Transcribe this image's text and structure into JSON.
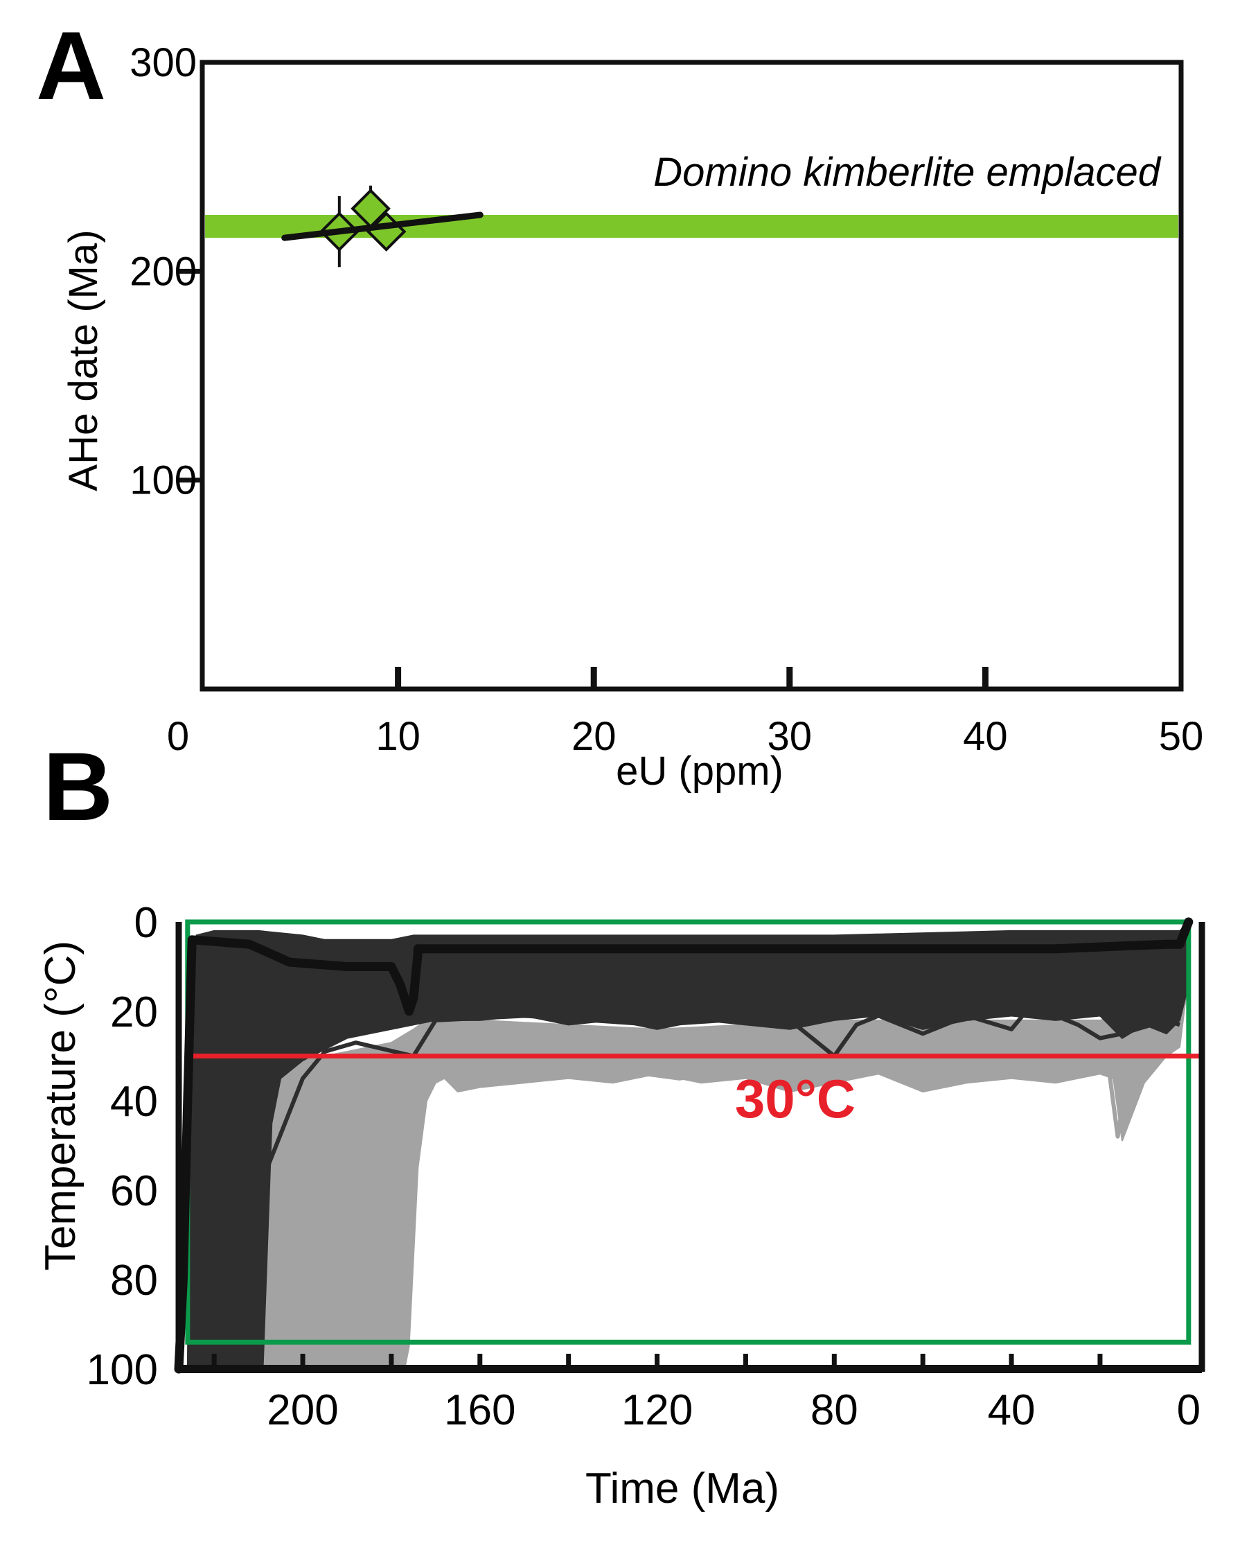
{
  "colors": {
    "green_band": "#7dc62a",
    "marker_fill": "#7dc62a",
    "envelope_dark": "#2e2e2e",
    "envelope_light": "#a3a3a3",
    "best_path": "#111111",
    "constraint_box": "#0a9a4a",
    "threshold_line": "#e8202a"
  },
  "chart_data": [
    {
      "panel": "A",
      "type": "scatter",
      "xlabel": "eU (ppm)",
      "ylabel": "AHe date (Ma)",
      "xlim": [
        0,
        50
      ],
      "ylim": [
        0,
        300
      ],
      "xticks": [
        0,
        10,
        20,
        30,
        40,
        50
      ],
      "yticks": [
        100,
        200,
        300
      ],
      "xtick_labels": [
        "0",
        "10",
        "20",
        "30",
        "40",
        "50"
      ],
      "ytick_labels": [
        "100",
        "200",
        "300"
      ],
      "points": [
        {
          "x": 7.0,
          "y": 219,
          "err": 17
        },
        {
          "x": 8.6,
          "y": 230,
          "err": 11
        },
        {
          "x": 9.4,
          "y": 219,
          "err": 0
        }
      ],
      "trend_line": {
        "x": [
          4.2,
          14.2
        ],
        "y": [
          216,
          227
        ]
      },
      "band": {
        "label": "Domino kimberlite emplaced",
        "ymin": 216,
        "ymax": 227
      }
    },
    {
      "panel": "B",
      "type": "line",
      "xlabel": "Time (Ma)",
      "ylabel": "Temperature (°C)",
      "xlim": [
        228,
        -3
      ],
      "ylim": [
        100,
        0
      ],
      "xticks": [
        200,
        160,
        120,
        80,
        40,
        0
      ],
      "yticks": [
        0,
        20,
        40,
        60,
        80,
        100
      ],
      "xtick_labels": [
        "200",
        "160",
        "120",
        "80",
        "40",
        "0"
      ],
      "ytick_labels": [
        "0",
        "20",
        "40",
        "60",
        "80",
        "100"
      ],
      "threshold": {
        "value": 30,
        "label": "30°C"
      },
      "constraint_box": {
        "t_start": 226,
        "t_end": 0,
        "temp_min": 0,
        "temp_max": 94
      },
      "series": [
        {
          "name": "good fit envelope",
          "upper": {
            "t": [
              228,
              226,
              225,
              224,
              220,
              210,
              200,
              195,
              190,
              180,
              175,
              170,
              160,
              120,
              80,
              40,
              20,
              10,
              2,
              0
            ],
            "temp": [
              100,
              100,
              10,
              3,
              2,
              2,
              3,
              4,
              4,
              4,
              3,
              3,
              3,
              3,
              3,
              2,
              2,
              2,
              2,
              0
            ]
          },
          "lower": {
            "t": [
              0,
              2,
              5,
              10,
              15,
              20,
              30,
              40,
              50,
              60,
              70,
              80,
              90,
              100,
              110,
              120,
              130,
              140,
              150,
              160,
              170,
              180,
              190,
              200,
              205,
              207,
              209,
              210,
              220,
              226,
              228
            ],
            "temp": [
              14,
              22,
              25,
              23,
              26,
              21,
              22,
              21,
              22,
              24,
              21,
              22,
              24,
              23,
              22,
              24,
              22,
              23,
              21,
              22,
              22,
              24,
              26,
              31,
              35,
              45,
              100,
              100,
              100,
              100,
              100
            ]
          }
        },
        {
          "name": "acceptable fit envelope",
          "upper": {
            "t": [
              209,
              207,
              205,
              200,
              190,
              180,
              175,
              172,
              170,
              160,
              120,
              80,
              40,
              20,
              10,
              2,
              0
            ],
            "temp": [
              100,
              45,
              35,
              31,
              29,
              27,
              24,
              22,
              22,
              22,
              24,
              22,
              22,
              22,
              20,
              18,
              14
            ]
          },
          "lower": {
            "t": [
              0,
              2,
              5,
              10,
              15,
              17,
              20,
              30,
              40,
              50,
              60,
              70,
              80,
              90,
              100,
              110,
              120,
              130,
              140,
              150,
              160,
              165,
              168,
              170,
              172,
              174,
              175,
              176,
              177
            ],
            "temp": [
              12,
              28,
              30,
              36,
              49,
              35,
              34,
              36,
              35,
              36,
              38,
              34,
              36,
              38,
              35,
              36,
              34,
              36,
              35,
              36,
              37,
              38,
              35,
              36,
              40,
              55,
              75,
              95,
              100
            ]
          }
        },
        {
          "name": "best path",
          "t": [
            228,
            227,
            226,
            225,
            212,
            203,
            190,
            180,
            178,
            176,
            175,
            174,
            174,
            140,
            100,
            60,
            30,
            5,
            2,
            0
          ],
          "temp": [
            100,
            80,
            40,
            4,
            5,
            9,
            10,
            10,
            14,
            20,
            17,
            7,
            6,
            6,
            6,
            6,
            6,
            5,
            5,
            0
          ]
        },
        {
          "name": "sampled paths (dark)",
          "t": [
            226,
            200,
            195,
            188,
            175,
            170,
            150,
            135,
            120,
            105,
            95,
            90,
            80,
            75,
            70,
            60,
            50,
            40,
            35,
            30,
            25,
            20,
            15,
            5,
            2
          ],
          "temp": [
            100,
            35,
            29,
            27,
            30,
            22,
            21,
            22,
            23,
            22,
            21,
            22,
            30,
            23,
            21,
            25,
            21,
            24,
            18,
            21,
            23,
            26,
            25,
            22,
            23
          ]
        },
        {
          "name": "sampled paths (light)",
          "t": [
            209,
            190,
            170,
            160,
            150,
            140,
            130,
            115,
            100,
            90,
            80,
            70,
            60,
            50,
            40,
            30,
            25,
            18,
            16,
            14,
            10,
            5,
            2
          ],
          "temp": [
            45,
            33,
            34,
            31,
            34,
            31,
            33,
            35,
            33,
            31,
            34,
            33,
            37,
            32,
            34,
            33,
            31,
            33,
            48,
            35,
            31,
            30,
            22
          ]
        }
      ]
    }
  ],
  "panel_a": {
    "letter": "A",
    "band_label": "Domino kimberlite emplaced",
    "xlabel": "eU (ppm)",
    "ylabel": "AHe date (Ma)",
    "xtick_labels": [
      "0",
      "10",
      "20",
      "30",
      "40",
      "50"
    ],
    "ytick_labels": [
      "100",
      "200",
      "300"
    ]
  },
  "panel_b": {
    "letter": "B",
    "threshold_label": "30°C",
    "xlabel": "Time (Ma)",
    "ylabel": "Temperature (°C)",
    "xtick_labels": [
      "200",
      "160",
      "120",
      "80",
      "40",
      "0"
    ],
    "ytick_labels": [
      "0",
      "20",
      "40",
      "60",
      "80",
      "100"
    ]
  }
}
